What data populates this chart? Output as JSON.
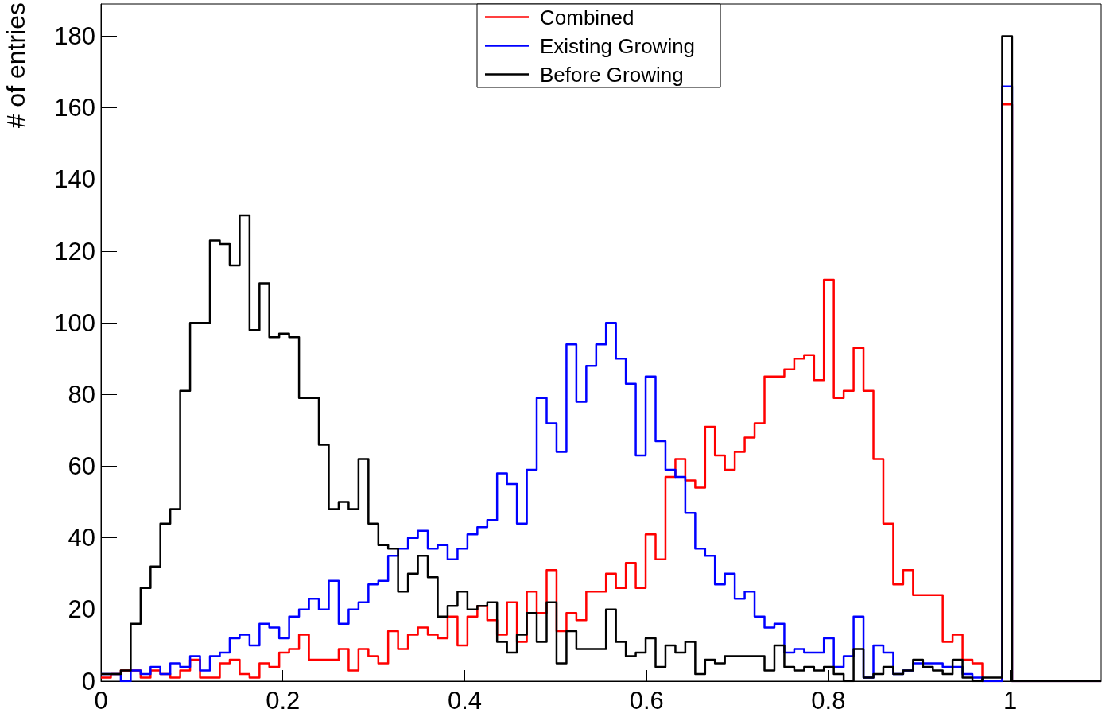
{
  "chart_data": {
    "type": "histogram",
    "ylabel": "# of entries",
    "bins": [
      0,
      0.0109,
      0.0218,
      0.0327,
      0.0436,
      0.0545,
      0.0653,
      0.0762,
      0.0871,
      0.098,
      0.1089,
      0.1198,
      0.1307,
      0.1416,
      0.1525,
      0.1634,
      0.1743,
      0.1851,
      0.196,
      0.2069,
      0.2178,
      0.2287,
      0.2396,
      0.2505,
      0.2614,
      0.2723,
      0.2832,
      0.2941,
      0.305,
      0.3158,
      0.3267,
      0.3376,
      0.3485,
      0.3594,
      0.3703,
      0.3812,
      0.3921,
      0.403,
      0.4139,
      0.4248,
      0.4356,
      0.4465,
      0.4574,
      0.4683,
      0.4792,
      0.4901,
      0.501,
      0.5119,
      0.5228,
      0.5337,
      0.5446,
      0.5554,
      0.5663,
      0.5772,
      0.5881,
      0.599,
      0.6099,
      0.6208,
      0.6317,
      0.6426,
      0.6535,
      0.6644,
      0.6752,
      0.6861,
      0.697,
      0.7079,
      0.7188,
      0.7297,
      0.7406,
      0.7515,
      0.7624,
      0.7733,
      0.7842,
      0.795,
      0.8059,
      0.8168,
      0.8277,
      0.8386,
      0.8495,
      0.8604,
      0.8713,
      0.8822,
      0.8931,
      0.904,
      0.9149,
      0.9257,
      0.9366,
      0.9475,
      0.9584,
      0.9693,
      0.9802,
      0.9911,
      1.002,
      1.0129,
      1.0238,
      1.0347,
      1.0455,
      1.0564,
      1.0673,
      1.0782,
      1.0891,
      1.1
    ],
    "series": [
      {
        "name": "Combined",
        "color": "#ff0000",
        "values": [
          1,
          2,
          3,
          3,
          1,
          3,
          2,
          1,
          3,
          6,
          1,
          1,
          5,
          6,
          2,
          1,
          5,
          4,
          8,
          9,
          13,
          6,
          6,
          6,
          9,
          3,
          9,
          7,
          5,
          14,
          9,
          13,
          15,
          13,
          12,
          18,
          10,
          18,
          21,
          17,
          13,
          22,
          11,
          25,
          19,
          31,
          14,
          19,
          17,
          25,
          25,
          30,
          26,
          33,
          26,
          41,
          34,
          57,
          62,
          56,
          54,
          71,
          63,
          59,
          64,
          68,
          72,
          85,
          85,
          87,
          90,
          91,
          84,
          112,
          79,
          81,
          93,
          81,
          62,
          44,
          27,
          31,
          24,
          24,
          24,
          11,
          13,
          6,
          5,
          0,
          0,
          161,
          0,
          0,
          0,
          0,
          0,
          0,
          0,
          0,
          0
        ]
      },
      {
        "name": "Existing Growing",
        "color": "#0000ff",
        "values": [
          2,
          2,
          0,
          3,
          2,
          4,
          2,
          5,
          4,
          7,
          3,
          7,
          8,
          12,
          13,
          10,
          16,
          15,
          12,
          18,
          20,
          23,
          20,
          28,
          16,
          20,
          22,
          27,
          28,
          35,
          37,
          40,
          42,
          37,
          38,
          34,
          37,
          41,
          43,
          45,
          58,
          55,
          44,
          59,
          79,
          72,
          64,
          94,
          78,
          88,
          94,
          100,
          90,
          83,
          63,
          85,
          67,
          59,
          57,
          47,
          37,
          35,
          27,
          30,
          23,
          25,
          18,
          15,
          16,
          8,
          9,
          8,
          8,
          12,
          4,
          7,
          18,
          1,
          10,
          8,
          2,
          3,
          5,
          5,
          5,
          4,
          4,
          2,
          1,
          0,
          0,
          166,
          0,
          0,
          0,
          0,
          0,
          0,
          0,
          0,
          0
        ]
      },
      {
        "name": "Before Growing",
        "color": "#000000",
        "values": [
          2,
          2,
          3,
          16,
          26,
          32,
          44,
          48,
          81,
          100,
          100,
          123,
          122,
          116,
          130,
          98,
          111,
          96,
          97,
          96,
          79,
          79,
          66,
          48,
          50,
          48,
          62,
          44,
          38,
          37,
          25,
          30,
          35,
          29,
          18,
          21,
          25,
          20,
          21,
          22,
          11,
          8,
          13,
          19,
          11,
          22,
          5,
          14,
          9,
          9,
          9,
          20,
          11,
          7,
          8,
          12,
          4,
          10,
          8,
          11,
          2,
          6,
          5,
          7,
          7,
          7,
          7,
          3,
          10,
          4,
          3,
          4,
          3,
          4,
          2,
          0,
          9,
          1,
          2,
          4,
          2,
          3,
          6,
          4,
          3,
          2,
          6,
          1,
          0,
          1,
          1,
          180,
          0,
          0,
          0,
          0,
          0,
          0,
          0,
          0,
          0
        ]
      }
    ],
    "xlim": [
      0,
      1.1
    ],
    "xticks": [
      0,
      0.2,
      0.4,
      0.6,
      0.8,
      1
    ],
    "ylim": [
      0,
      189
    ],
    "yticks": [
      0,
      20,
      40,
      60,
      80,
      100,
      120,
      140,
      160,
      180
    ],
    "legend": "top"
  }
}
